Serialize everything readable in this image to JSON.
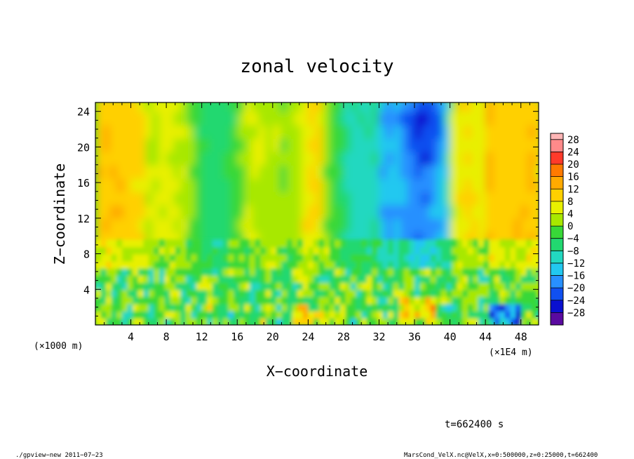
{
  "chart_data": {
    "type": "heatmap",
    "title": "zonal velocity",
    "xlabel": "X−coordinate",
    "ylabel": "Z−coordinate",
    "x_unit_left": "(×1000 m)",
    "x_unit_right": "(×1E4 m)",
    "xlim": [
      0,
      50
    ],
    "ylim": [
      0,
      25
    ],
    "x_ticks": [
      "4",
      "8",
      "12",
      "16",
      "20",
      "24",
      "28",
      "32",
      "36",
      "40",
      "44",
      "48"
    ],
    "y_ticks": [
      "4",
      "8",
      "12",
      "16",
      "20",
      "24"
    ],
    "colorbar": {
      "levels": [
        "28",
        "24",
        "20",
        "16",
        "12",
        "8",
        "4",
        "0",
        "−4",
        "−8",
        "−12",
        "−16",
        "−20",
        "−24",
        "−28"
      ],
      "colors": [
        "#ff8a8a",
        "#ff3a2a",
        "#ff7a00",
        "#ffaa00",
        "#ffd000",
        "#e8f000",
        "#a8e800",
        "#38d838",
        "#22d870",
        "#22d8c0",
        "#22c8f0",
        "#2890ff",
        "#1050f0",
        "#0a10d0",
        "#5a0aa0"
      ]
    },
    "field_description_points": [
      {
        "x": 2,
        "z": 20,
        "v": 10
      },
      {
        "x": 10,
        "z": 10,
        "v": 5
      },
      {
        "x": 24,
        "z": 1,
        "v": 14
      },
      {
        "x": 30,
        "z": 16,
        "v": -6
      },
      {
        "x": 37,
        "z": 20,
        "v": -14
      },
      {
        "x": 36,
        "z": 1,
        "v": 14
      },
      {
        "x": 46,
        "z": 1,
        "v": -22
      },
      {
        "x": 47,
        "z": 18,
        "v": 12
      }
    ]
  },
  "annotations": {
    "time": "t=662400 s",
    "footer_left": "./gpview−new   2011−07−23",
    "footer_right": "MarsCond_VelX.nc@VelX,x=0:500000,z=0:25000,t=662400"
  }
}
